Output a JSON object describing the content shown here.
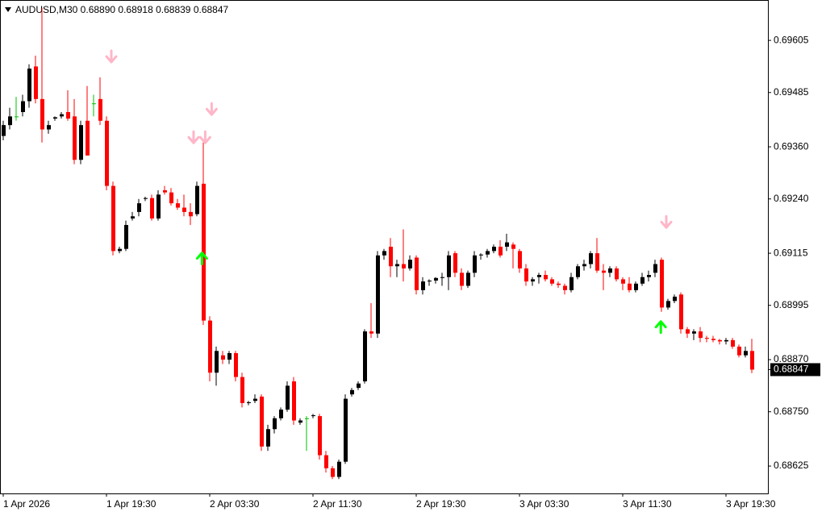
{
  "chart_data": {
    "type": "candlestick",
    "title": "AUDUSD,M30  0.68890 0.68918 0.68839 0.68847",
    "up_color": "#000000",
    "down_color": "#ff0000",
    "doji_color": "#00c000",
    "xlim": [
      -0.5,
      118.5
    ],
    "xticks": [
      {
        "value": 0,
        "label": "1 Apr 2026"
      },
      {
        "value": 16,
        "label": "1 Apr 19:30"
      },
      {
        "value": 32,
        "label": "2 Apr 03:30"
      },
      {
        "value": 48,
        "label": "2 Apr 11:30"
      },
      {
        "value": 64,
        "label": "2 Apr 19:30"
      },
      {
        "value": 80,
        "label": "3 Apr 03:30"
      },
      {
        "value": 96,
        "label": "3 Apr 11:30"
      },
      {
        "value": 112,
        "label": "3 Apr 19:30"
      }
    ],
    "ylim": [
      0.68562,
      0.69698
    ],
    "yticks": [
      0.69605,
      0.69485,
      {
        "value": 0.6936,
        "label": "0.69360"
      },
      {
        "value": 0.6924,
        "label": "0.69240"
      },
      0.69115,
      0.68995,
      {
        "value": 0.6887,
        "label": "0.68870"
      },
      {
        "value": 0.6875,
        "label": "0.68750"
      },
      0.68625
    ],
    "current_price": {
      "value": 0.68847,
      "label": "0.68847"
    },
    "candles": {
      "open": [
        0.69385,
        0.6941,
        0.6943,
        0.6944,
        0.69465,
        0.69545,
        0.6947,
        0.694,
        0.69425,
        0.6943,
        0.6944,
        0.6943,
        0.6933,
        0.6942,
        0.6946,
        0.6947,
        0.6942,
        0.6927,
        0.6912,
        0.69125,
        0.69195,
        0.6921,
        0.6924,
        0.69242,
        0.69195,
        0.6926,
        0.69255,
        0.6923,
        0.6922,
        0.6921,
        0.69205,
        0.69275,
        0.6896,
        0.6884,
        0.6888,
        0.6887,
        0.68885,
        0.6883,
        0.6877,
        0.68775,
        0.68785,
        0.6867,
        0.6871,
        0.68735,
        0.68755,
        0.6882,
        0.68725,
        0.68735,
        0.6874,
        0.6874,
        0.6865,
        0.6862,
        0.686,
        0.68635,
        0.6879,
        0.68805,
        0.6882,
        0.68935,
        0.6893,
        0.6911,
        0.6913,
        0.69085,
        0.6909,
        0.6908,
        0.69105,
        0.6903,
        0.6905,
        0.69052,
        0.69058,
        0.6906,
        0.69115,
        0.6907,
        0.6904,
        0.6907,
        0.6911,
        0.69112,
        0.6912,
        0.6913,
        0.6913,
        0.69135,
        0.6912,
        0.6908,
        0.6905,
        0.6906,
        0.69065,
        0.69055,
        0.69045,
        0.6904,
        0.6903,
        0.6906,
        0.69085,
        0.6909,
        0.69115,
        0.69075,
        0.6907,
        0.6908,
        0.69055,
        0.69045,
        0.6903,
        0.69045,
        0.6906,
        0.6907,
        0.691,
        0.6899,
        0.69005,
        0.6902,
        0.6894,
        0.6893,
        0.68935,
        0.6892,
        0.68918,
        0.68915,
        0.68912,
        0.68915,
        0.689,
        0.6888,
        0.6889
      ],
      "high": [
        0.6942,
        0.6945,
        0.69475,
        0.6948,
        0.6955,
        0.6957,
        0.6968,
        0.6942,
        0.6943,
        0.6944,
        0.6949,
        0.6947,
        0.6942,
        0.695,
        0.6948,
        0.6952,
        0.6943,
        0.6928,
        0.6913,
        0.6919,
        0.6921,
        0.6924,
        0.69245,
        0.6925,
        0.6926,
        0.6927,
        0.69265,
        0.6924,
        0.6925,
        0.6923,
        0.6928,
        0.6937,
        0.6897,
        0.689,
        0.6889,
        0.6889,
        0.6889,
        0.6884,
        0.68775,
        0.6879,
        0.6879,
        0.6872,
        0.6874,
        0.6876,
        0.6882,
        0.6883,
        0.68735,
        0.6874,
        0.68745,
        0.68745,
        0.6866,
        0.68625,
        0.6864,
        0.6879,
        0.68805,
        0.6882,
        0.6894,
        0.69,
        0.6912,
        0.69125,
        0.6915,
        0.691,
        0.6917,
        0.6911,
        0.6911,
        0.6906,
        0.69055,
        0.6906,
        0.6907,
        0.6912,
        0.6912,
        0.6908,
        0.69075,
        0.6912,
        0.69115,
        0.69125,
        0.69135,
        0.69145,
        0.6916,
        0.6914,
        0.69125,
        0.6909,
        0.6906,
        0.6907,
        0.69075,
        0.6906,
        0.6905,
        0.69045,
        0.6907,
        0.6909,
        0.691,
        0.6912,
        0.6915,
        0.6909,
        0.69085,
        0.69085,
        0.6906,
        0.6906,
        0.6905,
        0.6907,
        0.69075,
        0.691,
        0.69105,
        0.6901,
        0.6902,
        0.69025,
        0.68945,
        0.6894,
        0.68945,
        0.68925,
        0.68925,
        0.68918,
        0.6892,
        0.6892,
        0.68905,
        0.689,
        0.68918
      ],
      "low": [
        0.69375,
        0.694,
        0.6942,
        0.6943,
        0.6945,
        0.6946,
        0.6937,
        0.6939,
        0.6942,
        0.69425,
        0.6942,
        0.6932,
        0.6932,
        0.6934,
        0.6943,
        0.6941,
        0.6926,
        0.6911,
        0.69115,
        0.6912,
        0.6919,
        0.692,
        0.69235,
        0.6919,
        0.6919,
        0.6925,
        0.69225,
        0.69215,
        0.692,
        0.6918,
        0.692,
        0.6895,
        0.6882,
        0.6881,
        0.6886,
        0.6886,
        0.6882,
        0.6876,
        0.68765,
        0.6877,
        0.6866,
        0.6866,
        0.687,
        0.6873,
        0.6875,
        0.6872,
        0.6872,
        0.6866,
        0.68735,
        0.6864,
        0.6861,
        0.68595,
        0.68595,
        0.6863,
        0.68785,
        0.688,
        0.68815,
        0.6892,
        0.6892,
        0.691,
        0.6906,
        0.6906,
        0.6905,
        0.69075,
        0.6902,
        0.6902,
        0.6904,
        0.69045,
        0.6904,
        0.6903,
        0.6906,
        0.6903,
        0.69035,
        0.6906,
        0.691,
        0.69105,
        0.69115,
        0.69105,
        0.6912,
        0.6908,
        0.6907,
        0.6904,
        0.6904,
        0.69045,
        0.6905,
        0.6904,
        0.69035,
        0.6902,
        0.69025,
        0.69055,
        0.69075,
        0.6908,
        0.6907,
        0.6903,
        0.6906,
        0.6905,
        0.6903,
        0.69025,
        0.69025,
        0.6904,
        0.6905,
        0.6906,
        0.6898,
        0.68985,
        0.69,
        0.6893,
        0.6892,
        0.68915,
        0.6891,
        0.6891,
        0.6891,
        0.68905,
        0.68905,
        0.68895,
        0.68875,
        0.68875,
        0.68839
      ],
      "close": [
        0.6941,
        0.6943,
        0.6943,
        0.69465,
        0.6954,
        0.6947,
        0.694,
        0.6941,
        0.69428,
        0.69435,
        0.69425,
        0.6933,
        0.6941,
        0.6934,
        0.6946,
        0.6942,
        0.6927,
        0.6912,
        0.69125,
        0.6918,
        0.692,
        0.6923,
        0.69242,
        0.69195,
        0.6925,
        0.69255,
        0.6923,
        0.6922,
        0.6921,
        0.692,
        0.6927,
        0.6896,
        0.6884,
        0.6889,
        0.6887,
        0.68885,
        0.6883,
        0.6877,
        0.68772,
        0.6878,
        0.6867,
        0.6871,
        0.68735,
        0.68755,
        0.6881,
        0.6873,
        0.6873,
        0.68735,
        0.68742,
        0.6865,
        0.6862,
        0.686,
        0.68635,
        0.6878,
        0.688,
        0.68815,
        0.68935,
        0.6893,
        0.6911,
        0.6912,
        0.69085,
        0.6909,
        0.6908,
        0.691,
        0.6903,
        0.6905,
        0.69052,
        0.69058,
        0.6906,
        0.6911,
        0.6907,
        0.6904,
        0.6907,
        0.6911,
        0.69112,
        0.6912,
        0.6913,
        0.6911,
        0.6914,
        0.69125,
        0.6908,
        0.6905,
        0.69055,
        0.69065,
        0.69055,
        0.69045,
        0.69042,
        0.6903,
        0.6906,
        0.69085,
        0.6909,
        0.69115,
        0.69075,
        0.6907,
        0.6908,
        0.69055,
        0.69045,
        0.6903,
        0.69045,
        0.6906,
        0.69065,
        0.6909,
        0.6899,
        0.69005,
        0.69015,
        0.6894,
        0.6893,
        0.68935,
        0.6892,
        0.68918,
        0.68915,
        0.68912,
        0.68915,
        0.689,
        0.6888,
        0.6889,
        0.68847
      ]
    },
    "signals": [
      {
        "direction": "down",
        "color": "#ffb6c8",
        "x": 16.75,
        "price": 0.69568
      },
      {
        "direction": "down",
        "color": "#ffb6c8",
        "x": 29.5,
        "price": 0.69382
      },
      {
        "direction": "down",
        "color": "#ffb6c8",
        "x": 31.3,
        "price": 0.69382
      },
      {
        "direction": "down",
        "color": "#ffb6c8",
        "x": 32.3,
        "price": 0.69447
      },
      {
        "direction": "down",
        "color": "#ffb6c8",
        "x": 102.75,
        "price": 0.69187
      },
      {
        "direction": "up",
        "color": "#00ff00",
        "x": 30.8,
        "price": 0.69103
      },
      {
        "direction": "up",
        "color": "#00ff00",
        "x": 101.9,
        "price": 0.68945
      }
    ]
  }
}
